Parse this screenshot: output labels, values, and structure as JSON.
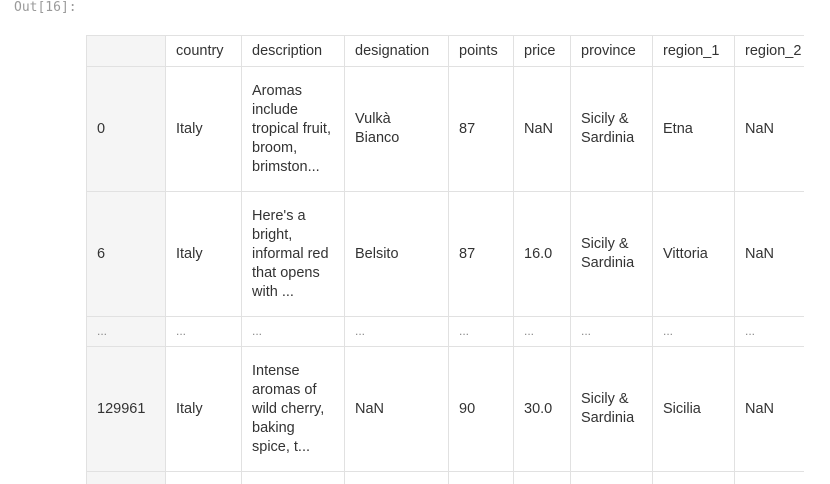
{
  "cell_prompt": "Out[16]:",
  "table": {
    "columns": [
      "",
      "country",
      "description",
      "designation",
      "points",
      "price",
      "province",
      "region_1",
      "region_2"
    ],
    "rows": [
      {
        "index": "0",
        "country": "Italy",
        "description": "Aromas include tropical fruit, broom, brimston...",
        "designation": "Vulkà Bianco",
        "points": "87",
        "price": "NaN",
        "province": "Sicily & Sardinia",
        "region_1": "Etna",
        "region_2": "NaN"
      },
      {
        "index": "6",
        "country": "Italy",
        "description": "Here's a bright, informal red that opens with ...",
        "designation": "Belsito",
        "points": "87",
        "price": "16.0",
        "province": "Sicily & Sardinia",
        "region_1": "Vittoria",
        "region_2": "NaN"
      },
      {
        "index": "...",
        "country": "...",
        "description": "...",
        "designation": "...",
        "points": "...",
        "price": "...",
        "province": "...",
        "region_1": "...",
        "region_2": "..."
      },
      {
        "index": "129961",
        "country": "Italy",
        "description": "Intense aromas of wild cherry, baking spice, t...",
        "designation": "NaN",
        "points": "90",
        "price": "30.0",
        "province": "Sicily & Sardinia",
        "region_1": "Sicilia",
        "region_2": "NaN"
      }
    ]
  }
}
